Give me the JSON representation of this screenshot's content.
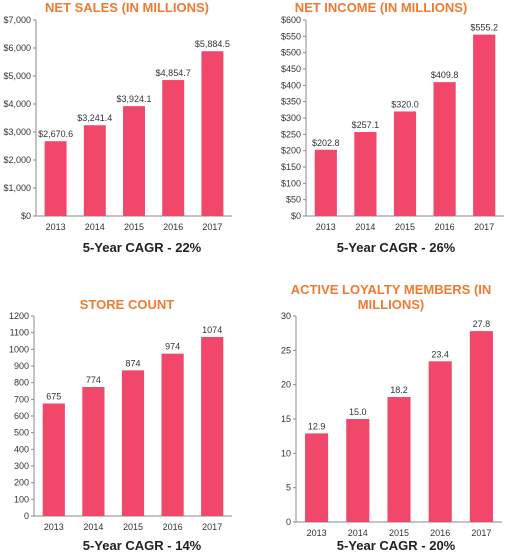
{
  "chart_data": [
    {
      "type": "bar",
      "title": "NET SALES (IN MILLIONS)",
      "categories": [
        "2013",
        "2014",
        "2015",
        "2016",
        "2017"
      ],
      "values": [
        2670.6,
        3241.4,
        3924.1,
        4854.7,
        5884.5
      ],
      "value_labels": [
        "$2,670.6",
        "$3,241.4",
        "$3,924.1",
        "$4,854.7",
        "$5,884.5"
      ],
      "ylim": [
        0,
        7000
      ],
      "yticks": [
        0,
        1000,
        2000,
        3000,
        4000,
        5000,
        6000,
        7000
      ],
      "ytick_labels": [
        "$0",
        "$1,000",
        "$2,000",
        "$3,000",
        "$4,000",
        "$5,000",
        "$6,000",
        "$7,000"
      ],
      "footer": "5-Year CAGR - 22%"
    },
    {
      "type": "bar",
      "title": "NET INCOME (IN MILLIONS)",
      "categories": [
        "2013",
        "2014",
        "2015",
        "2016",
        "2017"
      ],
      "values": [
        202.8,
        257.1,
        320.0,
        409.8,
        555.2
      ],
      "value_labels": [
        "$202.8",
        "$257.1",
        "$320.0",
        "$409.8",
        "$555.2"
      ],
      "ylim": [
        0,
        600
      ],
      "yticks": [
        0,
        50,
        100,
        150,
        200,
        250,
        300,
        350,
        400,
        450,
        500,
        550,
        600
      ],
      "ytick_labels": [
        "$0",
        "$50",
        "$100",
        "$150",
        "$200",
        "$250",
        "$300",
        "$350",
        "$400",
        "$450",
        "$500",
        "$550",
        "$600"
      ],
      "footer": "5-Year CAGR - 26%"
    },
    {
      "type": "bar",
      "title": "STORE COUNT",
      "categories": [
        "2013",
        "2014",
        "2015",
        "2016",
        "2017"
      ],
      "values": [
        675,
        774,
        874,
        974,
        1074
      ],
      "value_labels": [
        "675",
        "774",
        "874",
        "974",
        "1074"
      ],
      "ylim": [
        0,
        1200
      ],
      "yticks": [
        0,
        100,
        200,
        300,
        400,
        500,
        600,
        700,
        800,
        900,
        1000,
        1100,
        1200
      ],
      "ytick_labels": [
        "0",
        "100",
        "200",
        "300",
        "400",
        "500",
        "600",
        "700",
        "800",
        "900",
        "1000",
        "1100",
        "1200"
      ],
      "footer": "5-Year CAGR - 14%"
    },
    {
      "type": "bar",
      "title": "ACTIVE LOYALTY MEMBERS (IN MILLIONS)",
      "categories": [
        "2013",
        "2014",
        "2015",
        "2016",
        "2017"
      ],
      "values": [
        12.9,
        15.0,
        18.2,
        23.4,
        27.8
      ],
      "value_labels": [
        "12.9",
        "15.0",
        "18.2",
        "23.4",
        "27.8"
      ],
      "ylim": [
        0,
        30
      ],
      "yticks": [
        0,
        5,
        10,
        15,
        20,
        25,
        30
      ],
      "ytick_labels": [
        "0",
        "5",
        "10",
        "15",
        "20",
        "25",
        "30"
      ],
      "footer": "5-Year CAGR - 20%"
    }
  ],
  "colors": {
    "bar": "#f0476a",
    "title": "#ee7b32",
    "axis": "#888888",
    "text": "#333333"
  }
}
